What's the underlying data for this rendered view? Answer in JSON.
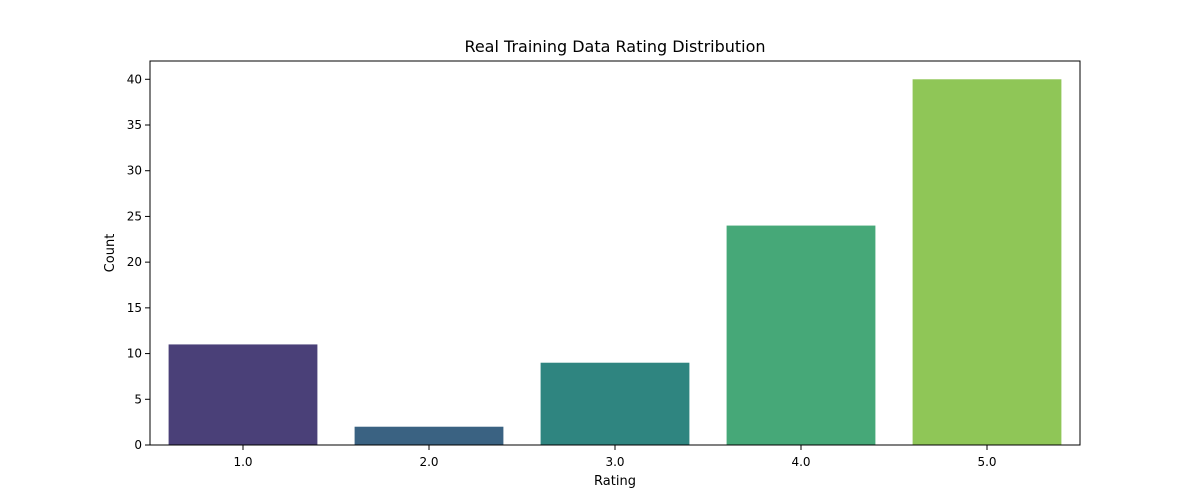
{
  "chart_data": {
    "type": "bar",
    "title": "Real Training Data Rating Distribution",
    "xlabel": "Rating",
    "ylabel": "Count",
    "categories": [
      "1.0",
      "2.0",
      "3.0",
      "4.0",
      "5.0"
    ],
    "values": [
      11,
      2,
      9,
      24,
      40
    ],
    "colors": [
      "#4a4078",
      "#3a6282",
      "#2f8580",
      "#46a878",
      "#8fc657"
    ],
    "ylim": [
      0,
      42
    ],
    "yticks": [
      0,
      5,
      10,
      15,
      20,
      25,
      30,
      35,
      40
    ],
    "grid": false,
    "legend": "none"
  }
}
